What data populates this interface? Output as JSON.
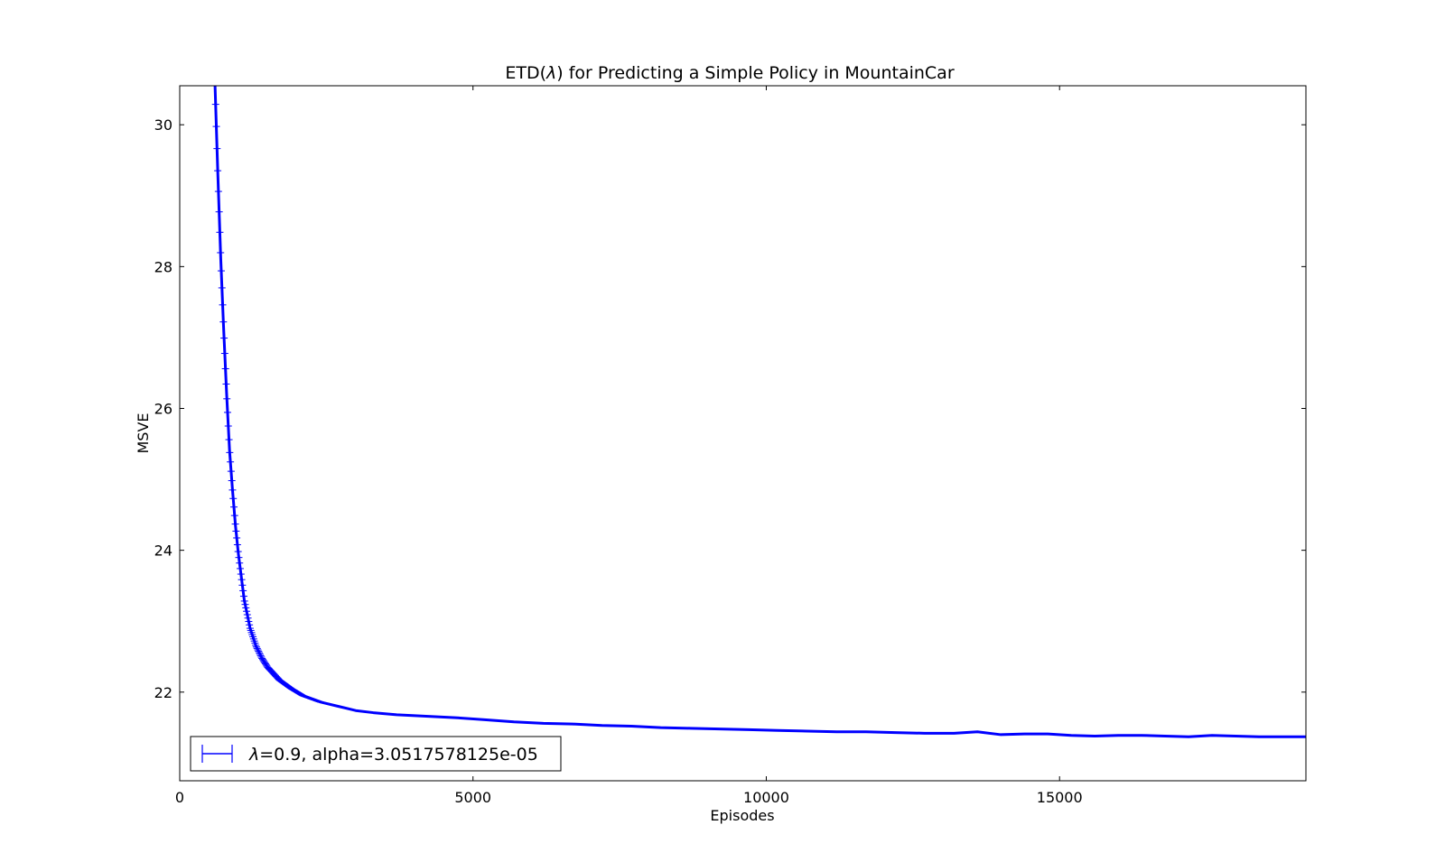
{
  "chart_data": {
    "type": "line",
    "title_prefix": "ETD(",
    "title_symbol": "λ",
    "title_suffix": ") for Predicting a Simple Policy in MountainCar",
    "xlabel": "Episodes",
    "ylabel": "MSVE",
    "xlim": [
      0,
      19200
    ],
    "ylim": [
      20.75,
      30.55
    ],
    "xticks": [
      0,
      5000,
      10000,
      15000
    ],
    "xtick_labels": [
      "0",
      "5000",
      "10000",
      "15000"
    ],
    "yticks": [
      22,
      24,
      26,
      28,
      30
    ],
    "ytick_labels": [
      "22",
      "24",
      "26",
      "28",
      "30"
    ],
    "grid": false,
    "legend_position": "lower-left",
    "series": [
      {
        "legend_symbol": "λ",
        "legend_text": "=0.9, alpha=3.0517578125e-05",
        "color": "#0000ff",
        "errorbars": true,
        "x": [
          600,
          650,
          700,
          750,
          800,
          850,
          900,
          950,
          1000,
          1100,
          1200,
          1300,
          1400,
          1500,
          1700,
          1900,
          2100,
          2400,
          2700,
          3000,
          3300,
          3700,
          4200,
          4700,
          5200,
          5700,
          6200,
          6700,
          7200,
          7700,
          8200,
          8700,
          9200,
          9700,
          10200,
          10700,
          11200,
          11700,
          12200,
          12700,
          13200,
          13600,
          14000,
          14400,
          14800,
          15200,
          15600,
          16000,
          16400,
          16800,
          17200,
          17600,
          18000,
          18400,
          18800,
          19200
        ],
        "y": [
          30.6,
          29.3,
          28.1,
          27.1,
          26.2,
          25.4,
          24.85,
          24.35,
          23.95,
          23.3,
          22.9,
          22.65,
          22.48,
          22.35,
          22.17,
          22.05,
          21.95,
          21.86,
          21.8,
          21.74,
          21.71,
          21.68,
          21.66,
          21.64,
          21.61,
          21.58,
          21.56,
          21.55,
          21.53,
          21.52,
          21.5,
          21.49,
          21.48,
          21.47,
          21.46,
          21.45,
          21.44,
          21.44,
          21.43,
          21.42,
          21.42,
          21.44,
          21.4,
          21.41,
          21.41,
          21.39,
          21.38,
          21.39,
          21.39,
          21.38,
          21.37,
          21.39,
          21.38,
          21.37,
          21.37,
          21.37
        ]
      }
    ]
  }
}
